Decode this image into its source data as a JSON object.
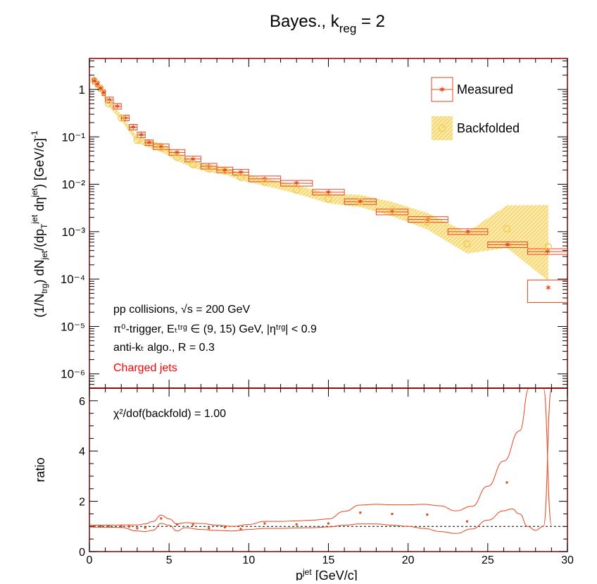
{
  "title": "Bayes., k",
  "title_sub": "reg",
  "title_tail": " = 2",
  "legend": {
    "measured": "Measured",
    "backfolded": "Backfolded"
  },
  "annotations": {
    "line1": "pp collisions, √s = 200 GeV",
    "line2": "π⁰-trigger, Eₜᵗʳᵍ ∈ (9, 15) GeV, |ηᵗʳᵍ| < 0.9",
    "line3": "anti-kₜ algo., R = 0.3",
    "line4": "Charged jets",
    "chi2": "χ²/dof(backfold) = 1.00"
  },
  "colors": {
    "measured": "#e8451a",
    "backfolded": "#f2c94c",
    "charged_jets": "#ff0000",
    "frame": "#800000"
  },
  "chart_data": [
    {
      "type": "scatter",
      "panel": "top",
      "ylabel": "(1/N_trg) dN_jet/(dp_T^jet dη^jet) [GeV/c]^-1",
      "y_scale": "log",
      "xlim": [
        0,
        30
      ],
      "ylim": [
        5e-07,
        4.5
      ],
      "y_tick_labels": [
        "10⁻⁶",
        "10⁻⁵",
        "10⁻⁴",
        "10⁻³",
        "10⁻²",
        "10⁻¹",
        "1"
      ],
      "series": [
        {
          "name": "Measured",
          "bins": [
            {
              "lo": 0.2,
              "hi": 0.4,
              "y": 1.5
            },
            {
              "lo": 0.4,
              "hi": 0.6,
              "y": 1.3
            },
            {
              "lo": 0.6,
              "hi": 0.8,
              "y": 1.05
            },
            {
              "lo": 0.8,
              "hi": 1.0,
              "y": 0.85
            },
            {
              "lo": 1.0,
              "hi": 1.5,
              "y": 0.6
            },
            {
              "lo": 1.5,
              "hi": 2.0,
              "y": 0.44
            },
            {
              "lo": 2.0,
              "hi": 2.5,
              "y": 0.25
            },
            {
              "lo": 2.5,
              "hi": 3.0,
              "y": 0.16
            },
            {
              "lo": 3.0,
              "hi": 3.5,
              "y": 0.11
            },
            {
              "lo": 3.5,
              "hi": 4.0,
              "y": 0.075
            },
            {
              "lo": 4.0,
              "hi": 5.0,
              "y": 0.062
            },
            {
              "lo": 5.0,
              "hi": 6.0,
              "y": 0.047
            },
            {
              "lo": 6.0,
              "hi": 7.0,
              "y": 0.034
            },
            {
              "lo": 7.0,
              "hi": 8.0,
              "y": 0.024
            },
            {
              "lo": 8.0,
              "hi": 9.0,
              "y": 0.02
            },
            {
              "lo": 9.0,
              "hi": 10.0,
              "y": 0.018
            },
            {
              "lo": 10.0,
              "hi": 12.0,
              "y": 0.013
            },
            {
              "lo": 12.0,
              "hi": 14.0,
              "y": 0.0105
            },
            {
              "lo": 14.0,
              "hi": 16.0,
              "y": 0.0068
            },
            {
              "lo": 16.0,
              "hi": 18.0,
              "y": 0.0043
            },
            {
              "lo": 18.0,
              "hi": 20.0,
              "y": 0.0026
            },
            {
              "lo": 20.0,
              "hi": 22.5,
              "y": 0.0018
            },
            {
              "lo": 22.5,
              "hi": 25.0,
              "y": 0.001
            },
            {
              "lo": 25.0,
              "hi": 27.5,
              "y": 0.00053
            },
            {
              "lo": 27.5,
              "hi": 30.0,
              "y": 0.00038
            }
          ],
          "tail_point": {
            "x": 28.8,
            "y": 6.5e-05,
            "box_lo": 3.2e-05,
            "box_hi": 9.5e-05
          }
        },
        {
          "name": "Backfolded",
          "x": [
            0.3,
            0.7,
            1.2,
            2.0,
            3.0,
            4.5,
            5.5,
            6.5,
            7.5,
            8.5,
            9.5,
            11,
            13,
            15,
            17,
            19,
            21.2,
            23.7,
            26.2,
            28.8
          ],
          "y": [
            1.55,
            1.05,
            0.5,
            0.25,
            0.085,
            0.058,
            0.037,
            0.026,
            0.021,
            0.019,
            0.014,
            0.011,
            0.0076,
            0.0049,
            0.0043,
            0.0029,
            0.0016,
            0.00055,
            0.00115,
            0.00048
          ]
        }
      ]
    },
    {
      "type": "scatter",
      "panel": "bottom",
      "xlabel": "p_T^jet [GeV/c]",
      "ylabel": "ratio",
      "xlim": [
        0,
        30
      ],
      "ylim": [
        0,
        6.5
      ],
      "x_ticks": [
        0,
        5,
        10,
        15,
        20,
        25,
        30
      ],
      "y_ticks": [
        0,
        2,
        4,
        6
      ],
      "reference_line": 1.0,
      "series": [
        {
          "name": "ratio",
          "x": [
            0.3,
            0.7,
            1.2,
            2.0,
            2.5,
            3.0,
            3.5,
            4.5,
            5.5,
            6.5,
            7.5,
            8.5,
            9.5,
            11,
            13,
            15,
            17,
            19,
            21.2,
            23.7,
            26.2
          ],
          "y": [
            1.0,
            1.0,
            1.0,
            1.0,
            1.0,
            0.93,
            0.95,
            1.32,
            1.08,
            1.07,
            0.93,
            0.97,
            0.9,
            1.12,
            1.08,
            1.12,
            1.55,
            1.5,
            1.47,
            1.2,
            2.75
          ]
        },
        {
          "name": "upper band",
          "x": [
            0,
            1,
            2,
            3,
            3.5,
            4,
            4.5,
            5,
            5.5,
            6,
            7,
            8,
            9,
            10,
            11,
            12,
            13,
            14,
            15,
            16,
            17,
            18,
            19,
            20,
            21,
            22,
            23,
            24,
            25,
            26,
            27,
            27.6,
            28,
            28.5,
            29
          ],
          "y": [
            1.05,
            1.05,
            1.06,
            1.06,
            1.1,
            1.2,
            1.45,
            1.3,
            1.1,
            1.15,
            1.12,
            1.05,
            1.0,
            1.08,
            1.2,
            1.2,
            1.22,
            1.25,
            1.3,
            1.6,
            1.85,
            1.88,
            1.86,
            1.86,
            1.88,
            1.82,
            1.62,
            1.8,
            2.6,
            3.6,
            4.8,
            6.5,
            6.5,
            6.5,
            1.05
          ]
        },
        {
          "name": "lower band",
          "x": [
            0,
            1,
            2,
            3,
            3.5,
            4,
            4.5,
            5,
            5.5,
            6,
            7,
            8,
            9,
            10,
            11,
            12,
            13,
            14,
            15,
            16,
            17,
            18,
            19,
            20,
            21,
            22,
            23,
            24,
            25,
            26,
            26.5,
            27,
            27.5,
            28,
            28.5,
            29
          ],
          "y": [
            0.98,
            0.97,
            0.96,
            0.82,
            0.8,
            0.85,
            1.12,
            1.05,
            0.82,
            0.95,
            0.88,
            0.84,
            0.82,
            0.88,
            0.92,
            0.92,
            0.94,
            0.95,
            0.98,
            1.05,
            1.1,
            1.1,
            1.05,
            1.0,
            0.92,
            0.8,
            0.72,
            0.9,
            1.25,
            1.62,
            1.7,
            1.5,
            1.0,
            0.85,
            1.0,
            6.5
          ]
        }
      ]
    }
  ]
}
